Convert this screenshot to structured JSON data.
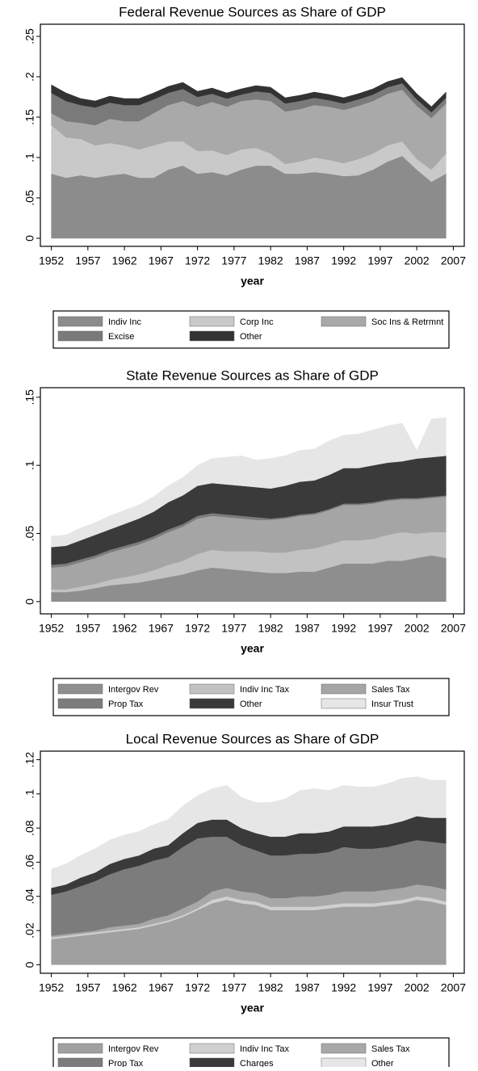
{
  "chart_data": [
    {
      "type": "stacked_area",
      "title": "Federal Revenue Sources as Share of GDP",
      "xlabel": "year",
      "x": [
        1952,
        1954,
        1956,
        1958,
        1960,
        1962,
        1964,
        1966,
        1968,
        1970,
        1972,
        1974,
        1976,
        1978,
        1980,
        1982,
        1984,
        1986,
        1988,
        1990,
        1992,
        1994,
        1996,
        1998,
        2000,
        2002,
        2004,
        2006
      ],
      "series": [
        {
          "name": "Indiv Inc",
          "color": "#8c8c8c",
          "values": [
            0.08,
            0.075,
            0.078,
            0.075,
            0.078,
            0.08,
            0.075,
            0.075,
            0.085,
            0.09,
            0.08,
            0.082,
            0.078,
            0.085,
            0.09,
            0.09,
            0.08,
            0.08,
            0.082,
            0.08,
            0.077,
            0.078,
            0.085,
            0.095,
            0.102,
            0.085,
            0.07,
            0.08
          ]
        },
        {
          "name": "Corp Inc",
          "color": "#c9c9c9",
          "values": [
            0.06,
            0.05,
            0.045,
            0.04,
            0.04,
            0.035,
            0.035,
            0.04,
            0.035,
            0.03,
            0.028,
            0.027,
            0.025,
            0.025,
            0.022,
            0.015,
            0.012,
            0.015,
            0.018,
            0.017,
            0.016,
            0.02,
            0.02,
            0.02,
            0.018,
            0.013,
            0.015,
            0.025
          ]
        },
        {
          "name": "Soc Ins & Retrmnt",
          "color": "#a9a9a9",
          "values": [
            0.015,
            0.02,
            0.02,
            0.025,
            0.03,
            0.03,
            0.035,
            0.04,
            0.045,
            0.05,
            0.055,
            0.06,
            0.06,
            0.06,
            0.06,
            0.065,
            0.065,
            0.065,
            0.065,
            0.066,
            0.066,
            0.066,
            0.065,
            0.064,
            0.064,
            0.066,
            0.064,
            0.062
          ]
        },
        {
          "name": "Excise",
          "color": "#7a7a7a",
          "values": [
            0.025,
            0.025,
            0.022,
            0.022,
            0.02,
            0.02,
            0.02,
            0.017,
            0.015,
            0.015,
            0.012,
            0.01,
            0.01,
            0.008,
            0.01,
            0.01,
            0.01,
            0.01,
            0.009,
            0.008,
            0.008,
            0.008,
            0.008,
            0.008,
            0.008,
            0.008,
            0.007,
            0.007
          ]
        },
        {
          "name": "Other",
          "color": "#333333",
          "values": [
            0.01,
            0.01,
            0.008,
            0.008,
            0.008,
            0.008,
            0.008,
            0.008,
            0.008,
            0.008,
            0.007,
            0.007,
            0.007,
            0.007,
            0.007,
            0.007,
            0.007,
            0.007,
            0.007,
            0.007,
            0.007,
            0.007,
            0.007,
            0.007,
            0.007,
            0.007,
            0.007,
            0.007
          ]
        }
      ],
      "xlim": [
        1950.5,
        2008.5
      ],
      "xticks": [
        1952,
        1957,
        1962,
        1967,
        1972,
        1977,
        1982,
        1987,
        1992,
        1997,
        2002,
        2007
      ],
      "ylim": [
        -0.01,
        0.265
      ],
      "yticks": [
        0,
        {
          "value": 0.05,
          "label": ".05"
        },
        {
          "value": 0.1,
          "label": ".1"
        },
        {
          "value": 0.15,
          "label": ".15"
        },
        {
          "value": 0.2,
          "label": ".2"
        },
        {
          "value": 0.25,
          "label": ".25"
        }
      ],
      "legend": "bottom"
    },
    {
      "type": "stacked_area",
      "title": "State Revenue Sources as Share of GDP",
      "xlabel": "year",
      "x": [
        1952,
        1954,
        1956,
        1958,
        1960,
        1962,
        1964,
        1966,
        1968,
        1970,
        1972,
        1974,
        1976,
        1978,
        1980,
        1982,
        1984,
        1986,
        1988,
        1990,
        1992,
        1994,
        1996,
        1998,
        2000,
        2002,
        2004,
        2006
      ],
      "series": [
        {
          "name": "Intergov Rev",
          "color": "#8e8e8e",
          "values": [
            0.007,
            0.007,
            0.008,
            0.01,
            0.012,
            0.013,
            0.014,
            0.016,
            0.018,
            0.02,
            0.023,
            0.025,
            0.024,
            0.023,
            0.022,
            0.021,
            0.021,
            0.022,
            0.022,
            0.025,
            0.028,
            0.028,
            0.028,
            0.03,
            0.03,
            0.032,
            0.034,
            0.032
          ]
        },
        {
          "name": "Indiv Inc Tax",
          "color": "#c2c2c2",
          "values": [
            0.002,
            0.002,
            0.003,
            0.003,
            0.004,
            0.005,
            0.006,
            0.007,
            0.009,
            0.01,
            0.012,
            0.013,
            0.013,
            0.014,
            0.015,
            0.015,
            0.015,
            0.016,
            0.017,
            0.017,
            0.017,
            0.017,
            0.018,
            0.019,
            0.021,
            0.018,
            0.017,
            0.019
          ]
        },
        {
          "name": "Sales Tax",
          "color": "#a5a5a5",
          "values": [
            0.016,
            0.017,
            0.018,
            0.019,
            0.02,
            0.021,
            0.022,
            0.023,
            0.024,
            0.025,
            0.026,
            0.025,
            0.025,
            0.024,
            0.023,
            0.024,
            0.025,
            0.025,
            0.025,
            0.025,
            0.026,
            0.026,
            0.026,
            0.025,
            0.024,
            0.025,
            0.025,
            0.026
          ]
        },
        {
          "name": "Prop Tax",
          "color": "#7c7c7c",
          "values": [
            0.002,
            0.002,
            0.002,
            0.002,
            0.002,
            0.002,
            0.002,
            0.002,
            0.002,
            0.002,
            0.002,
            0.002,
            0.002,
            0.002,
            0.002,
            0.001,
            0.001,
            0.001,
            0.001,
            0.001,
            0.001,
            0.001,
            0.001,
            0.001,
            0.001,
            0.001,
            0.001,
            0.001
          ]
        },
        {
          "name": "Other",
          "color": "#3a3a3a",
          "values": [
            0.013,
            0.013,
            0.014,
            0.015,
            0.015,
            0.016,
            0.017,
            0.018,
            0.02,
            0.021,
            0.022,
            0.022,
            0.022,
            0.022,
            0.022,
            0.022,
            0.023,
            0.024,
            0.024,
            0.025,
            0.026,
            0.026,
            0.027,
            0.027,
            0.027,
            0.029,
            0.029,
            0.029
          ]
        },
        {
          "name": "Insur Trust",
          "color": "#e6e6e6",
          "values": [
            0.008,
            0.008,
            0.009,
            0.009,
            0.01,
            0.01,
            0.01,
            0.011,
            0.012,
            0.013,
            0.015,
            0.018,
            0.02,
            0.022,
            0.02,
            0.022,
            0.022,
            0.023,
            0.023,
            0.025,
            0.024,
            0.025,
            0.026,
            0.027,
            0.028,
            0.006,
            0.028,
            0.028
          ]
        }
      ],
      "xlim": [
        1950.5,
        2008.5
      ],
      "xticks": [
        1952,
        1957,
        1962,
        1967,
        1972,
        1977,
        1982,
        1987,
        1992,
        1997,
        2002,
        2007
      ],
      "ylim": [
        -0.009,
        0.157
      ],
      "yticks": [
        0,
        {
          "value": 0.05,
          "label": ".05"
        },
        {
          "value": 0.1,
          "label": ".1"
        },
        {
          "value": 0.15,
          "label": ".15"
        }
      ],
      "legend": "bottom"
    },
    {
      "type": "stacked_area",
      "title": "Local Revenue Sources as Share of GDP",
      "xlabel": "year",
      "x": [
        1952,
        1954,
        1956,
        1958,
        1960,
        1962,
        1964,
        1966,
        1968,
        1970,
        1972,
        1974,
        1976,
        1978,
        1980,
        1982,
        1984,
        1986,
        1988,
        1990,
        1992,
        1994,
        1996,
        1998,
        2000,
        2002,
        2004,
        2006
      ],
      "series": [
        {
          "name": "Intergov Rev",
          "color": "#a0a0a0",
          "values": [
            0.015,
            0.016,
            0.017,
            0.018,
            0.019,
            0.02,
            0.021,
            0.023,
            0.025,
            0.028,
            0.032,
            0.036,
            0.038,
            0.036,
            0.035,
            0.032,
            0.032,
            0.032,
            0.032,
            0.033,
            0.034,
            0.034,
            0.034,
            0.035,
            0.036,
            0.038,
            0.037,
            0.035
          ]
        },
        {
          "name": "Indiv Inc Tax",
          "color": "#d0d0d0",
          "values": [
            0.001,
            0.001,
            0.001,
            0.001,
            0.001,
            0.001,
            0.001,
            0.001,
            0.001,
            0.001,
            0.001,
            0.002,
            0.002,
            0.002,
            0.002,
            0.002,
            0.002,
            0.002,
            0.002,
            0.002,
            0.002,
            0.002,
            0.002,
            0.002,
            0.002,
            0.002,
            0.002,
            0.002
          ]
        },
        {
          "name": "Sales Tax",
          "color": "#a8a8a8",
          "values": [
            0.001,
            0.001,
            0.001,
            0.001,
            0.002,
            0.002,
            0.002,
            0.003,
            0.003,
            0.004,
            0.004,
            0.005,
            0.005,
            0.005,
            0.005,
            0.005,
            0.005,
            0.006,
            0.006,
            0.006,
            0.007,
            0.007,
            0.007,
            0.007,
            0.007,
            0.007,
            0.007,
            0.007
          ]
        },
        {
          "name": "Prop Tax",
          "color": "#7c7c7c",
          "values": [
            0.024,
            0.025,
            0.027,
            0.029,
            0.031,
            0.033,
            0.034,
            0.034,
            0.034,
            0.036,
            0.037,
            0.032,
            0.03,
            0.027,
            0.025,
            0.025,
            0.025,
            0.025,
            0.025,
            0.025,
            0.026,
            0.025,
            0.025,
            0.025,
            0.026,
            0.026,
            0.026,
            0.027
          ]
        },
        {
          "name": "Charges",
          "color": "#3a3a3a",
          "values": [
            0.004,
            0.004,
            0.005,
            0.005,
            0.006,
            0.006,
            0.006,
            0.007,
            0.007,
            0.008,
            0.009,
            0.01,
            0.01,
            0.01,
            0.01,
            0.011,
            0.011,
            0.012,
            0.012,
            0.012,
            0.012,
            0.013,
            0.013,
            0.013,
            0.013,
            0.014,
            0.014,
            0.015
          ]
        },
        {
          "name": "Other",
          "color": "#e6e6e6",
          "values": [
            0.011,
            0.012,
            0.013,
            0.014,
            0.014,
            0.014,
            0.014,
            0.014,
            0.015,
            0.016,
            0.016,
            0.018,
            0.02,
            0.018,
            0.018,
            0.02,
            0.022,
            0.025,
            0.026,
            0.024,
            0.024,
            0.023,
            0.023,
            0.024,
            0.025,
            0.023,
            0.022,
            0.022
          ]
        }
      ],
      "xlim": [
        1950.5,
        2008.5
      ],
      "xticks": [
        1952,
        1957,
        1962,
        1967,
        1972,
        1977,
        1982,
        1987,
        1992,
        1997,
        2002,
        2007
      ],
      "ylim": [
        -0.005,
        0.125
      ],
      "yticks": [
        0,
        {
          "value": 0.02,
          "label": ".02"
        },
        {
          "value": 0.04,
          "label": ".04"
        },
        {
          "value": 0.06,
          "label": ".06"
        },
        {
          "value": 0.08,
          "label": ".08"
        },
        {
          "value": 0.1,
          "label": ".1"
        },
        {
          "value": 0.12,
          "label": ".12"
        }
      ],
      "legend": "bottom"
    }
  ]
}
